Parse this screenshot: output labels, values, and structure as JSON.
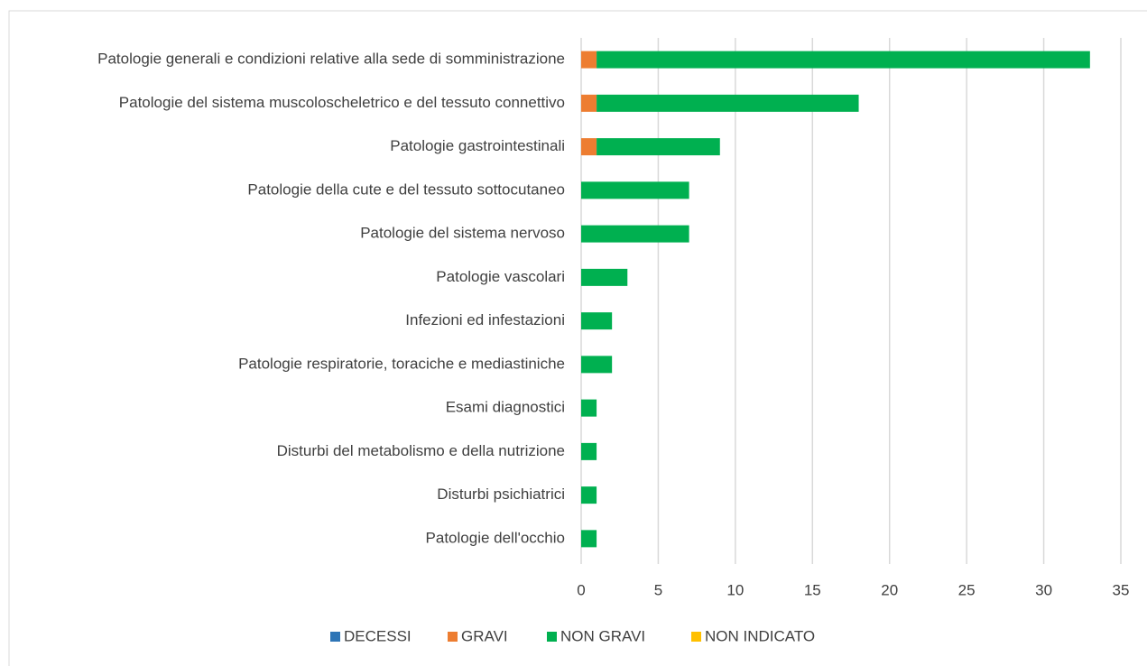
{
  "chart_data": {
    "type": "stacked_barh",
    "categories": [
      "Patologie generali e condizioni relative alla sede di somministrazione",
      "Patologie del sistema muscoloscheletrico e del tessuto connettivo",
      "Patologie gastrointestinali",
      "Patologie della cute e del tessuto sottocutaneo",
      "Patologie del sistema nervoso",
      "Patologie vascolari",
      "Infezioni ed infestazioni",
      "Patologie respiratorie, toraciche e mediastiniche",
      "Esami diagnostici",
      "Disturbi del metabolismo e della nutrizione",
      "Disturbi psichiatrici",
      "Patologie dell'occhio"
    ],
    "series": [
      {
        "name": "DECESSI",
        "color": "#2e75b6",
        "values": [
          0,
          0,
          0,
          0,
          0,
          0,
          0,
          0,
          0,
          0,
          0,
          0
        ]
      },
      {
        "name": "GRAVI",
        "color": "#ed7d31",
        "values": [
          1,
          1,
          1,
          0,
          0,
          0,
          0,
          0,
          0,
          0,
          0,
          0
        ]
      },
      {
        "name": "NON GRAVI",
        "color": "#00b050",
        "values": [
          32,
          17,
          8,
          7,
          7,
          3,
          2,
          2,
          1,
          1,
          1,
          1
        ]
      },
      {
        "name": "NON INDICATO",
        "color": "#ffc000",
        "values": [
          0,
          0,
          0,
          0,
          0,
          0,
          0,
          0,
          0,
          0,
          0,
          0
        ]
      }
    ],
    "xlim": [
      0,
      35
    ],
    "xticks": [
      0,
      5,
      10,
      15,
      20,
      25,
      30,
      35
    ],
    "grid": true,
    "legend": "bottom"
  }
}
